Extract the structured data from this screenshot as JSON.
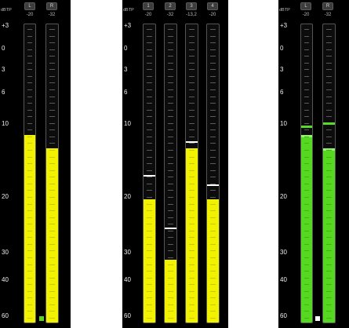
{
  "colors": {
    "yellow": "#f2f200",
    "green": "#55d81f",
    "green_light": "#98f078",
    "hold_white": "#ffffff"
  },
  "scale": {
    "unit": "dBTP",
    "labels": [
      "+3",
      "0",
      "3",
      "6",
      "10",
      "20",
      "30",
      "40",
      "60"
    ]
  },
  "panels": [
    {
      "id": "stereo-1",
      "color": "yellow",
      "unit_label": "dBTP",
      "indicator": "green",
      "channels": [
        {
          "name": "L",
          "peak": "-20",
          "level": 0.628,
          "hold": null
        },
        {
          "name": "R",
          "peak": "-32",
          "level": 0.585,
          "hold": null
        }
      ]
    },
    {
      "id": "multi-4",
      "color": "yellow",
      "unit_label": "dBTP",
      "indicator": null,
      "channels": [
        {
          "name": "1",
          "peak": "-20",
          "level": 0.413,
          "hold": 0.495
        },
        {
          "name": "2",
          "peak": "-32",
          "level": 0.21,
          "hold": 0.318
        },
        {
          "name": "3",
          "peak": "-13,2",
          "level": 0.585,
          "hold": 0.607
        },
        {
          "name": "4",
          "peak": "-20",
          "level": 0.413,
          "hold": 0.462
        }
      ]
    },
    {
      "id": "stereo-2",
      "color": "green",
      "unit_label": "dBTP",
      "indicator": "white",
      "channels": [
        {
          "name": "L",
          "peak": "-20",
          "level": 0.628,
          "hold": 0.66
        },
        {
          "name": "R",
          "peak": "-32",
          "level": 0.585,
          "hold": 0.672
        }
      ]
    }
  ]
}
